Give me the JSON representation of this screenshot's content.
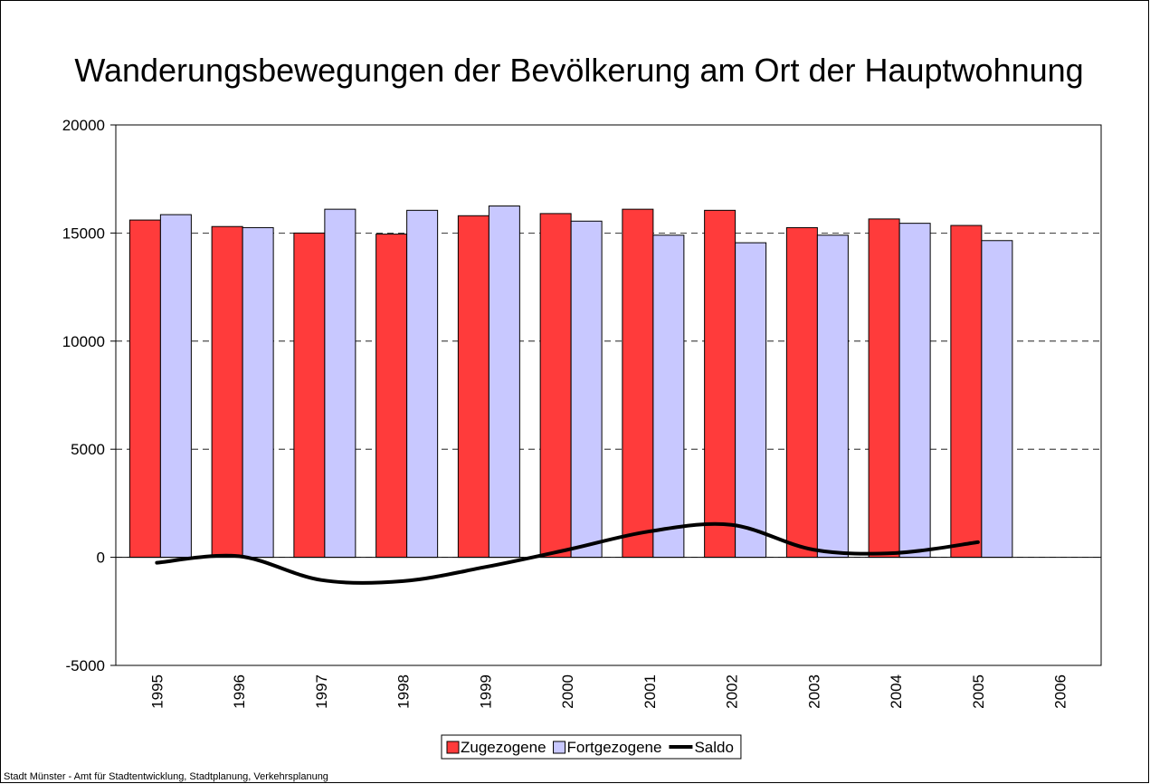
{
  "chart_data": {
    "type": "bar",
    "title": "Wanderungsbewegungen der Bevölkerung am Ort der Hauptwohnung",
    "categories": [
      "1995",
      "1996",
      "1997",
      "1998",
      "1999",
      "2000",
      "2001",
      "2002",
      "2003",
      "2004",
      "2005",
      "2006"
    ],
    "series": [
      {
        "name": "Zugezogene",
        "color": "#ff3b3b",
        "values": [
          15600,
          15300,
          15000,
          14950,
          15800,
          15900,
          16100,
          16050,
          15250,
          15650,
          15350,
          null
        ]
      },
      {
        "name": "Fortgezogene",
        "color": "#c8c8ff",
        "values": [
          15850,
          15250,
          16100,
          16050,
          16250,
          15550,
          14900,
          14550,
          14900,
          15450,
          14650,
          null
        ]
      },
      {
        "name": "Saldo",
        "type": "line",
        "color": "#000000",
        "values": [
          -250,
          50,
          -1050,
          -1100,
          -450,
          350,
          1200,
          1500,
          350,
          200,
          700,
          null
        ]
      }
    ],
    "ylim": [
      -5000,
      20000
    ],
    "yticks": [
      -5000,
      0,
      5000,
      10000,
      15000,
      20000
    ],
    "grid": true,
    "legend": "bottom",
    "source": "Stadt Münster - Amt für Stadtentwicklung, Stadtplanung, Verkehrsplanung"
  }
}
